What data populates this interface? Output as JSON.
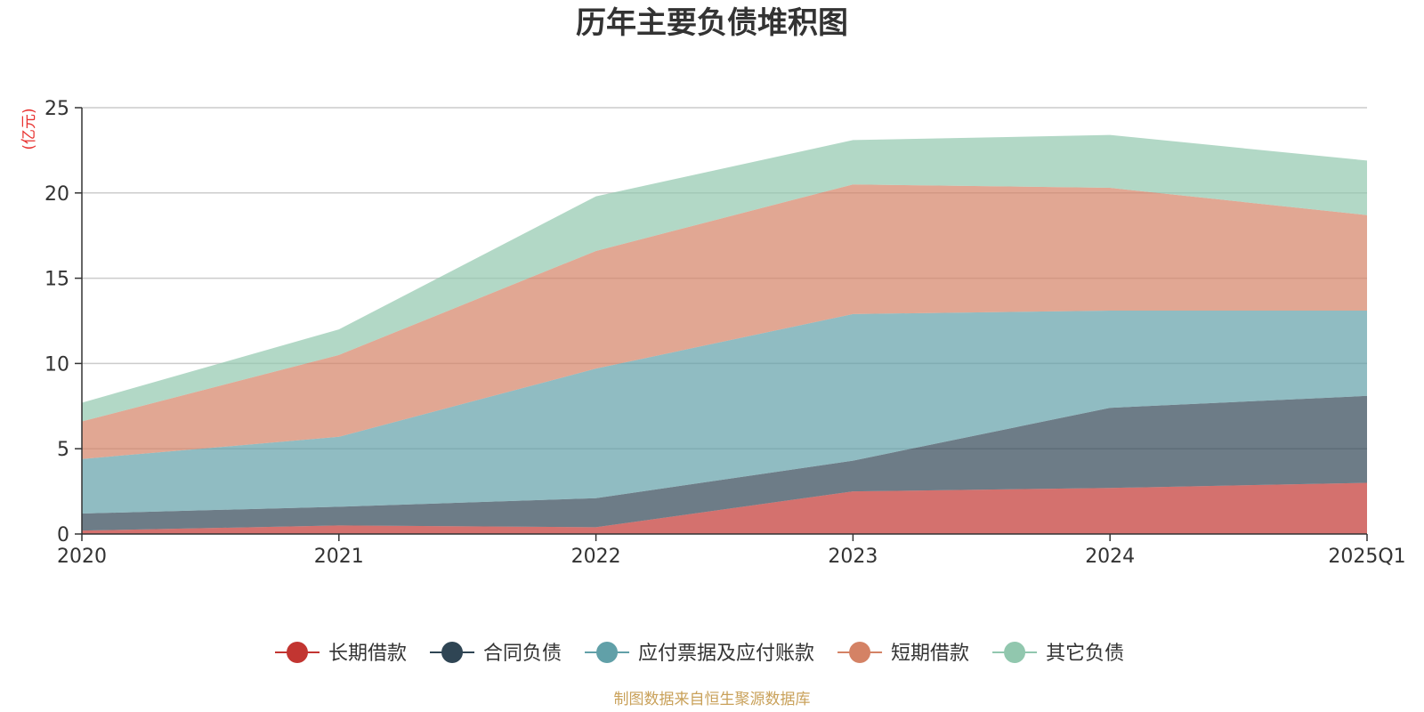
{
  "chart_data": {
    "type": "area",
    "stacked": true,
    "title": "历年主要负债堆积图",
    "unit_label": "(亿元)",
    "categories": [
      "2020",
      "2021",
      "2022",
      "2023",
      "2024",
      "2025Q1"
    ],
    "ylim": [
      0,
      25
    ],
    "yticks": [
      0,
      5,
      10,
      15,
      20,
      25
    ],
    "grid": true,
    "legend_position": "bottom",
    "series": [
      {
        "name": "长期借款",
        "color": "#c23531",
        "values": [
          0.2,
          0.5,
          0.4,
          2.5,
          2.7,
          3.0
        ]
      },
      {
        "name": "合同负债",
        "color": "#2f4554",
        "values": [
          1.0,
          1.1,
          1.7,
          1.8,
          4.7,
          5.1
        ]
      },
      {
        "name": "应付票据及应付账款",
        "color": "#61a0a8",
        "values": [
          3.2,
          4.1,
          7.6,
          8.6,
          5.7,
          5.0
        ]
      },
      {
        "name": "短期借款",
        "color": "#d48265",
        "values": [
          2.2,
          4.8,
          6.9,
          7.6,
          7.2,
          5.6
        ]
      },
      {
        "name": "其它负债",
        "color": "#91c7ae",
        "values": [
          1.1,
          1.5,
          3.2,
          2.6,
          3.1,
          3.2
        ]
      }
    ]
  },
  "source": "制图数据来自恒生聚源数据库"
}
